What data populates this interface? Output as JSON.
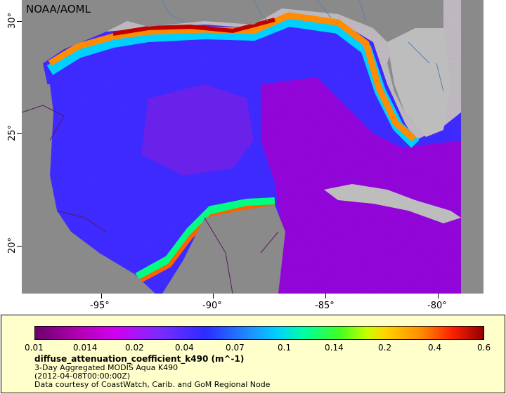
{
  "credit": "NOAA/AOML",
  "x_ticks": [
    "-95°",
    "-90°",
    "-85°",
    "-80°"
  ],
  "y_ticks": [
    "30°",
    "25°",
    "20°"
  ],
  "colorbar": {
    "labels": [
      "0.01",
      "0.014",
      "0.02",
      "0.04",
      "0.07",
      "0.1",
      "0.14",
      "0.2",
      "0.4",
      "0.6"
    ]
  },
  "legend": {
    "title": "diffuse_attenuation_coefficient_k490 (m^-1)",
    "line1": "3-Day Aggregated MODIS Aqua K490",
    "line2": "(2012-04-08T00:00:00Z)",
    "line3": "Data courtesy of CoastWatch, Carib. and GoM Regional Node"
  },
  "colors": {
    "land": "#8a8a8a",
    "no_data": "#bdbdbd",
    "legend_bg": "#ffffcc",
    "deep_water": "#3a2cff",
    "clear_water": "#a000d0",
    "turbid_coast": "#ff2000"
  }
}
